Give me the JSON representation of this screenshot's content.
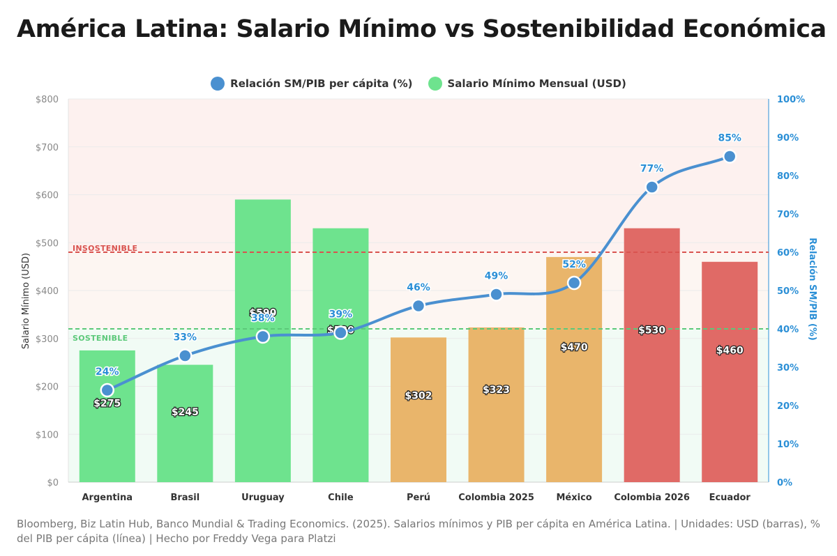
{
  "title": "América Latina: Salario Mínimo vs Sostenibilidad Económica",
  "footer": "Bloomberg, Biz Latin Hub, Banco Mundial & Trading Economics. (2025). Salarios mínimos y PIB per cápita en América Latina. | Unidades: USD (barras), % del PIB per cápita (línea) | Hecho por Freddy Vega para Platzi",
  "colors": {
    "sustainable_bar": "#6ee38e",
    "medium_bar": "#e9b56b",
    "unsustainable_bar": "#e06a66",
    "line": "#4a90d0",
    "right_axis": "#2b8fd6",
    "sustainable_zone": "#f1fbf5",
    "unsustainable_zone": "#fdf1ef",
    "sustainable_threshold": "#5cc97a",
    "unsustainable_threshold": "#d9534f"
  },
  "chart_data": {
    "type": "bar",
    "categories": [
      "Argentina",
      "Brasil",
      "Uruguay",
      "Chile",
      "Perú",
      "Colombia 2025",
      "México",
      "Colombia 2026",
      "Ecuador"
    ],
    "series": [
      {
        "name": "Salario Mínimo Mensual (USD)",
        "type": "bar",
        "axis": "left",
        "values": [
          275,
          245,
          590,
          530,
          302,
          323,
          470,
          530,
          460
        ],
        "labels": [
          "$275",
          "$245",
          "$590",
          "$530",
          "$302",
          "$323",
          "$470",
          "$530",
          "$460"
        ],
        "bar_colors": [
          "sustainable_bar",
          "sustainable_bar",
          "sustainable_bar",
          "sustainable_bar",
          "medium_bar",
          "medium_bar",
          "medium_bar",
          "unsustainable_bar",
          "unsustainable_bar"
        ]
      },
      {
        "name": "Relación SM/PIB per cápita (%)",
        "type": "line",
        "axis": "right",
        "values": [
          24,
          33,
          38,
          39,
          46,
          49,
          52,
          77,
          85
        ],
        "labels": [
          "24%",
          "33%",
          "38%",
          "39%",
          "46%",
          "49%",
          "52%",
          "77%",
          "85%"
        ]
      }
    ],
    "ylabel": "Salario Mínimo (USD)",
    "y2label": "Relación SM/PIB (%)",
    "ylim": [
      0,
      800
    ],
    "y2lim": [
      0,
      100
    ],
    "yticks": [
      0,
      100,
      200,
      300,
      400,
      500,
      600,
      700,
      800
    ],
    "yticklabels": [
      "$0",
      "$100",
      "$200",
      "$300",
      "$400",
      "$500",
      "$600",
      "$700",
      "$800"
    ],
    "y2ticks": [
      0,
      10,
      20,
      30,
      40,
      50,
      60,
      70,
      80,
      90,
      100
    ],
    "y2ticklabels": [
      "0%",
      "10%",
      "20%",
      "30%",
      "40%",
      "50%",
      "60%",
      "70%",
      "80%",
      "90%",
      "100%"
    ],
    "thresholds": [
      {
        "label": "SOSTENIBLE",
        "value": 40,
        "axis": "right"
      },
      {
        "label": "INSOSTENIBLE",
        "value": 60,
        "axis": "right"
      }
    ],
    "legend": [
      "Relación SM/PIB per cápita (%)",
      "Salario Mínimo Mensual (USD)"
    ],
    "legend_position": "top-center",
    "grid": true
  }
}
